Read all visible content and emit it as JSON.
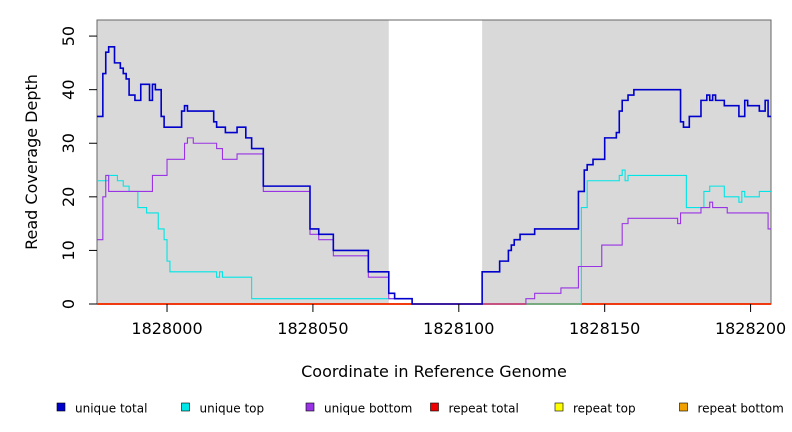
{
  "chart_data": {
    "type": "line",
    "title": "",
    "xlabel": "Coordinate in Reference Genome",
    "ylabel": "Read Coverage Depth",
    "xlim": [
      1827976,
      1828207
    ],
    "ylim": [
      0,
      53
    ],
    "xticks": [
      1828000,
      1828050,
      1828100,
      1828150,
      1828200
    ],
    "xtick_labels": [
      "1828000",
      "1828050",
      "1828100",
      "1828150",
      "1828200"
    ],
    "yticks": [
      0,
      10,
      20,
      30,
      40,
      50
    ],
    "ytick_labels": [
      "0",
      "10",
      "20",
      "30",
      "40",
      "50"
    ],
    "shaded_regions": [
      [
        1827976,
        1828076
      ],
      [
        1828108,
        1828207
      ]
    ],
    "shade_color": "#d9d9d9",
    "legend_position": "bottom",
    "series": [
      {
        "name": "unique total",
        "color": "#0000cc",
        "x": [
          1827976,
          1827978,
          1827979,
          1827980,
          1827982,
          1827984,
          1827985,
          1827986,
          1827987,
          1827989,
          1827991,
          1827994,
          1827995,
          1827996,
          1827998,
          1827999,
          1828000,
          1828001,
          1828005,
          1828006,
          1828007,
          1828009,
          1828016,
          1828017,
          1828019,
          1828020,
          1828024,
          1828027,
          1828029,
          1828033,
          1828049,
          1828052,
          1828057,
          1828064,
          1828069,
          1828076,
          1828078,
          1828084,
          1828108,
          1828114,
          1828117,
          1828118,
          1828119,
          1828120,
          1828121,
          1828123,
          1828124,
          1828125,
          1828126,
          1828141,
          1828142,
          1828143,
          1828144,
          1828146,
          1828150,
          1828154,
          1828155,
          1828156,
          1828157,
          1828158,
          1828159,
          1828160,
          1828164,
          1828165,
          1828166,
          1828175,
          1828176,
          1828177,
          1828179,
          1828183,
          1828184,
          1828185,
          1828186,
          1828187,
          1828188,
          1828189,
          1828191,
          1828196,
          1828197,
          1828198,
          1828199,
          1828200,
          1828203,
          1828205,
          1828206,
          1828207
        ],
        "y": [
          35,
          43,
          47,
          48,
          45,
          44,
          43,
          42,
          39,
          38,
          41,
          38,
          41,
          40,
          35,
          33,
          33,
          33,
          36,
          37,
          36,
          36,
          34,
          33,
          33,
          32,
          33,
          31,
          29,
          22,
          14,
          13,
          10,
          10,
          6,
          2,
          1,
          0,
          6,
          8,
          10,
          11,
          12,
          12,
          13,
          13,
          13,
          13,
          14,
          21,
          21,
          25,
          26,
          27,
          31,
          32,
          36,
          38,
          38,
          39,
          39,
          40,
          40,
          40,
          40,
          40,
          34,
          33,
          35,
          38,
          38,
          39,
          38,
          39,
          38,
          38,
          37,
          35,
          35,
          38,
          37,
          37,
          36,
          38,
          35,
          35
        ]
      },
      {
        "name": "unique top",
        "color": "#00e5e5",
        "x": [
          1827976,
          1827980,
          1827983,
          1827985,
          1827987,
          1827990,
          1827993,
          1827997,
          1827999,
          1828000,
          1828001,
          1828016,
          1828017,
          1828018,
          1828019,
          1828020,
          1828027,
          1828028,
          1828029,
          1828076,
          1828084,
          1828108,
          1828114,
          1828141,
          1828142,
          1828143,
          1828144,
          1828155,
          1828156,
          1828157,
          1828158,
          1828159,
          1828176,
          1828178,
          1828184,
          1828186,
          1828191,
          1828196,
          1828197,
          1828198,
          1828199,
          1828203,
          1828205,
          1828207
        ],
        "y": [
          23,
          24,
          23,
          22,
          21,
          18,
          17,
          14,
          12,
          8,
          6,
          6,
          5,
          6,
          5,
          5,
          5,
          5,
          1,
          1,
          0,
          0,
          0,
          0,
          18,
          18,
          23,
          24,
          25,
          23,
          24,
          24,
          24,
          18,
          21,
          22,
          20,
          19,
          21,
          20,
          20,
          21,
          21,
          21
        ]
      },
      {
        "name": "unique bottom",
        "color": "#9933e5",
        "x": [
          1827976,
          1827978,
          1827979,
          1827980,
          1827985,
          1827988,
          1827993,
          1827995,
          1828000,
          1828005,
          1828006,
          1828007,
          1828009,
          1828016,
          1828017,
          1828019,
          1828024,
          1828033,
          1828049,
          1828052,
          1828057,
          1828064,
          1828069,
          1828076,
          1828084,
          1828108,
          1828114,
          1828123,
          1828126,
          1828135,
          1828141,
          1828149,
          1828156,
          1828158,
          1828173,
          1828175,
          1828176,
          1828177,
          1828179,
          1828183,
          1828186,
          1828187,
          1828190,
          1828192,
          1828206,
          1828207
        ],
        "y": [
          12,
          20,
          24,
          21,
          21,
          21,
          21,
          24,
          27,
          27,
          30,
          31,
          30,
          30,
          29,
          27,
          28,
          21,
          13,
          12,
          9,
          9,
          5,
          1,
          0,
          0,
          0,
          1,
          2,
          3,
          7,
          11,
          15,
          16,
          16,
          15,
          17,
          17,
          17,
          18,
          19,
          18,
          18,
          17,
          14,
          14
        ]
      },
      {
        "name": "repeat total",
        "color": "#ee0000",
        "x": [
          1827976,
          1828207
        ],
        "y": [
          0,
          0
        ]
      },
      {
        "name": "repeat top",
        "color": "#ffff00",
        "x": [
          1827976,
          1828207
        ],
        "y": [
          0,
          0
        ]
      },
      {
        "name": "repeat bottom",
        "color": "#f0a000",
        "x": [
          1827976,
          1828207
        ],
        "y": [
          0,
          0
        ]
      }
    ]
  }
}
